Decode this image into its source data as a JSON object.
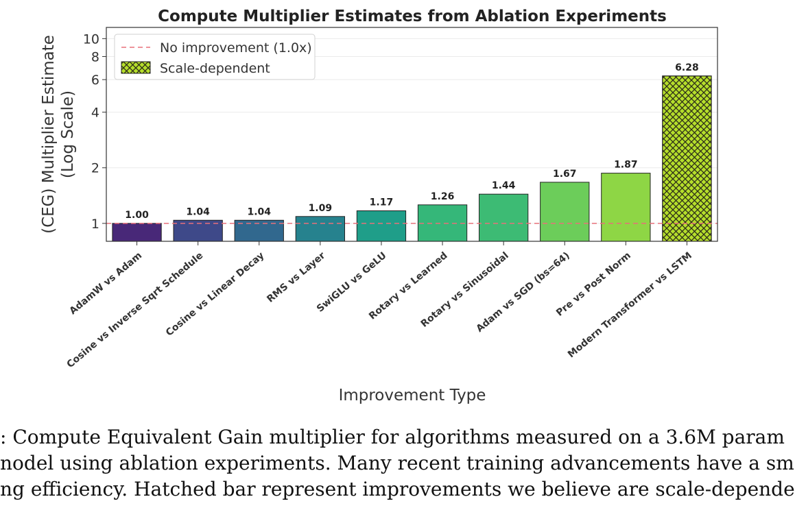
{
  "chart_data": {
    "type": "bar",
    "title": "Compute Multiplier Estimates from Ablation Experiments",
    "xlabel": "Improvement Type",
    "ylabel_line1": "(CEG) Multiplier Estimate",
    "ylabel_line2": "(Log Scale)",
    "yscale": "log",
    "ylim": [
      0.8,
      11.5
    ],
    "yticks": [
      1,
      2,
      4,
      6,
      8,
      10
    ],
    "ytick_labels": [
      "1",
      "2",
      "4",
      "6",
      "8",
      "10"
    ],
    "grid": "y",
    "categories": [
      "AdamW vs Adam",
      "Cosine vs Inverse Sqrt Schedule",
      "Cosine vs Linear Decay",
      "RMS vs Layer",
      "SwiGLU vs GeLU",
      "Rotary vs Learned",
      "Rotary vs Sinusoidal",
      "Adam vs SGD (bs=64)",
      "Pre vs Post Norm",
      "Modern Transformer vs LSTM"
    ],
    "values": [
      1.0,
      1.04,
      1.04,
      1.09,
      1.17,
      1.26,
      1.44,
      1.67,
      1.87,
      6.28
    ],
    "value_labels": [
      "1.00",
      "1.04",
      "1.04",
      "1.09",
      "1.17",
      "1.26",
      "1.44",
      "1.67",
      "1.87",
      "6.28"
    ],
    "colors": [
      "#482878",
      "#3e4989",
      "#31688e",
      "#26828e",
      "#1f9e89",
      "#35b779",
      "#3dbb74",
      "#6ccd5a",
      "#8ed645",
      "#b5de2b"
    ],
    "hatched": [
      false,
      false,
      false,
      false,
      false,
      false,
      false,
      false,
      false,
      true
    ],
    "reference_line": {
      "value": 1.0,
      "style": "dashed",
      "color": "#e8707a",
      "label": "No improvement (1.0x)"
    },
    "legend": {
      "placement": "top-left",
      "entries": [
        "No improvement (1.0x)",
        "Scale-dependent"
      ]
    }
  },
  "caption": {
    "lines": [
      ": Compute Equivalent Gain multiplier for algorithms measured on a 3.6M param",
      "nodel using ablation experiments. Many recent training advancements have a sm",
      "ng efficiency. Hatched bar represent improvements we believe are scale-depende"
    ]
  }
}
